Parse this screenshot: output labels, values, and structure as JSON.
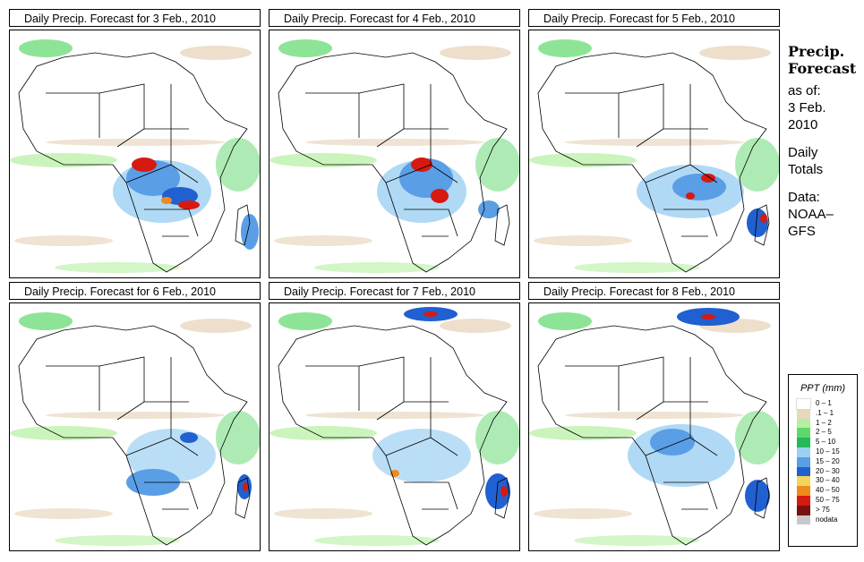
{
  "panels": [
    {
      "title": "Daily Precip. Forecast for  3 Feb., 2010"
    },
    {
      "title": "Daily Precip. Forecast for  4 Feb., 2010"
    },
    {
      "title": "Daily Precip. Forecast for  5 Feb., 2010"
    },
    {
      "title": "Daily Precip. Forecast for  6 Feb., 2010"
    },
    {
      "title": "Daily Precip. Forecast for  7 Feb., 2010"
    },
    {
      "title": "Daily Precip. Forecast for  8 Feb., 2010"
    }
  ],
  "sidebar": {
    "heading1": "Precip.",
    "heading2": "Forecast",
    "asof": "as of:",
    "date1": "3 Feb.",
    "date2": "2010",
    "daily1": "Daily",
    "daily2": "Totals",
    "data1": "Data:",
    "data2": "NOAA–",
    "data3": "GFS"
  },
  "legend": {
    "title": "PPT (mm)",
    "items": [
      {
        "label": "0 – 1",
        "color": "#ffffff"
      },
      {
        "label": ".1 – 1",
        "color": "#e8d7bf"
      },
      {
        "label": "1 – 2",
        "color": "#b4f0a0"
      },
      {
        "label": "2 – 5",
        "color": "#5ed869"
      },
      {
        "label": "5 – 10",
        "color": "#26b85a"
      },
      {
        "label": "10 – 15",
        "color": "#9cd0f2"
      },
      {
        "label": "15 – 20",
        "color": "#5a9ee6"
      },
      {
        "label": "20 – 30",
        "color": "#2060d0"
      },
      {
        "label": "30 – 40",
        "color": "#f3d55a"
      },
      {
        "label": "40 – 50",
        "color": "#f08a1c"
      },
      {
        "label": "50 – 75",
        "color": "#d61a10"
      },
      {
        "label": "> 75",
        "color": "#7a1010"
      },
      {
        "label": "nodata",
        "color": "#c8c8c8"
      }
    ]
  }
}
